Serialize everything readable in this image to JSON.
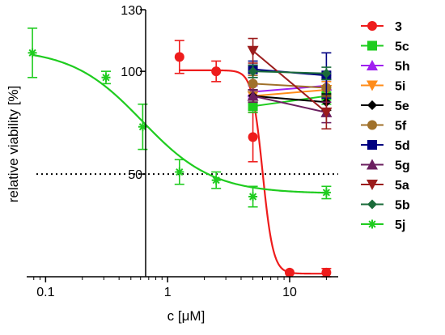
{
  "chart_data": {
    "type": "scatter",
    "title": "",
    "xlabel": "c [μM]",
    "ylabel": "relative viability [%]",
    "x_scale": "log",
    "xlim": [
      0.07,
      25
    ],
    "xticks": [
      0.1,
      1,
      10
    ],
    "xtick_labels": [
      "0.1",
      "1",
      "10"
    ],
    "ylim": [
      0,
      130
    ],
    "yticks": [
      50,
      100,
      130
    ],
    "ytick_labels": [
      "50",
      "100",
      "130"
    ],
    "reference_line": {
      "y": 50,
      "style": "dotted"
    },
    "grid": false,
    "legend_position": "right",
    "series": [
      {
        "name": "3",
        "color": "#ee1c1c",
        "marker": "circle",
        "x": [
          1.25,
          2.5,
          5,
          10,
          20
        ],
        "y": [
          107,
          100,
          68,
          2,
          2
        ],
        "err": [
          8,
          5,
          12,
          0,
          2
        ],
        "fit": {
          "top": 100.5,
          "bottom": 1.5,
          "ec50": 6.0,
          "hill": 10
        }
      },
      {
        "name": "5c",
        "color": "#1fcc1f",
        "marker": "square",
        "x": [
          5,
          20
        ],
        "y": [
          83,
          88
        ],
        "err": [
          3,
          4
        ]
      },
      {
        "name": "5h",
        "color": "#a020f0",
        "marker": "triangle-up",
        "x": [
          5,
          20
        ],
        "y": [
          90,
          93
        ],
        "err": [
          3,
          5
        ]
      },
      {
        "name": "5i",
        "color": "#ff8c1a",
        "marker": "triangle-down",
        "x": [
          5,
          20
        ],
        "y": [
          88,
          91
        ],
        "err": [
          3,
          4
        ]
      },
      {
        "name": "5e",
        "color": "#000000",
        "marker": "diamond",
        "x": [
          5,
          20
        ],
        "y": [
          88,
          85
        ],
        "err": [
          3,
          4
        ]
      },
      {
        "name": "5f",
        "color": "#a0712b",
        "marker": "circle",
        "x": [
          5,
          20
        ],
        "y": [
          94,
          92
        ],
        "err": [
          4,
          4
        ]
      },
      {
        "name": "5d",
        "color": "#000080",
        "marker": "square",
        "x": [
          5,
          20
        ],
        "y": [
          101,
          98
        ],
        "err": [
          4,
          11
        ]
      },
      {
        "name": "5g",
        "color": "#6b1f5f",
        "marker": "triangle-up",
        "x": [
          5,
          20
        ],
        "y": [
          88,
          80
        ],
        "err": [
          3,
          5
        ]
      },
      {
        "name": "5a",
        "color": "#9b1c1c",
        "marker": "triangle-down",
        "x": [
          5,
          20
        ],
        "y": [
          110,
          80
        ],
        "err": [
          6,
          8
        ]
      },
      {
        "name": "5b",
        "color": "#1a6b3a",
        "marker": "diamond",
        "x": [
          5,
          20
        ],
        "y": [
          100,
          99
        ],
        "err": [
          3,
          3
        ]
      },
      {
        "name": "5j",
        "color": "#1fcc1f",
        "marker": "star",
        "x": [
          0.078,
          0.3125,
          0.625,
          1.25,
          2.5,
          5,
          20
        ],
        "y": [
          109,
          97,
          73,
          51,
          47,
          39,
          41
        ],
        "err": [
          12,
          3,
          11,
          6,
          4,
          5,
          3
        ],
        "fit": {
          "top": 111,
          "bottom": 40.5,
          "ec50": 0.62,
          "hill": 1.5
        }
      }
    ]
  }
}
